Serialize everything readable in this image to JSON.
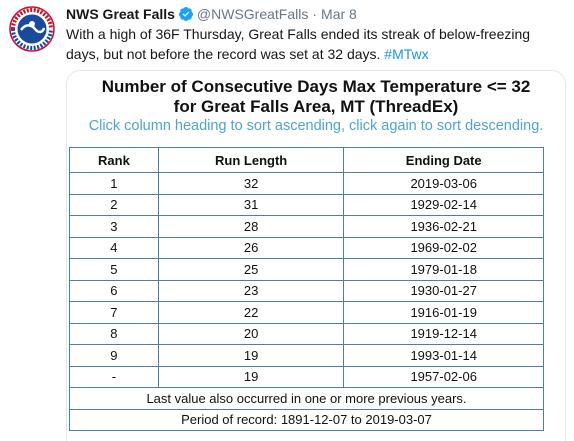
{
  "tweet": {
    "name": "NWS Great Falls",
    "handle": "@NWSGreatFalls",
    "separator": "·",
    "date": "Mar 8",
    "text_main": "With a high of 36F Thursday, Great Falls ended its streak of below-freezing days, but not before the record was set at 32 days. ",
    "hashtag": "#MTwx",
    "avatar_icon": "noaa-nws-logo-icon",
    "verified_icon": "verified-badge-icon",
    "colors": {
      "verified": "#1da1f2",
      "hashtag": "#1b95e0",
      "meta": "#657786"
    }
  },
  "card": {
    "title_line1": "Number of Consecutive Days Max Temperature <= 32",
    "title_line2": "for Great Falls Area, MT (ThreadEx)",
    "subtitle": "Click column heading to sort ascending, click again to sort descending.",
    "columns": [
      "Rank",
      "Run Length",
      "Ending Date"
    ],
    "rows": [
      {
        "rank": "1",
        "length": "32",
        "date": "2019-03-06"
      },
      {
        "rank": "2",
        "length": "31",
        "date": "1929-02-14"
      },
      {
        "rank": "3",
        "length": "28",
        "date": "1936-02-21"
      },
      {
        "rank": "4",
        "length": "26",
        "date": "1969-02-02"
      },
      {
        "rank": "5",
        "length": "25",
        "date": "1979-01-18"
      },
      {
        "rank": "6",
        "length": "23",
        "date": "1930-01-27"
      },
      {
        "rank": "7",
        "length": "22",
        "date": "1916-01-19"
      },
      {
        "rank": "8",
        "length": "20",
        "date": "1919-12-14"
      },
      {
        "rank": "9",
        "length": "19",
        "date": "1993-01-14"
      },
      {
        "rank": "-",
        "length": "19",
        "date": "1957-02-06"
      }
    ],
    "footnote": "Last value also occurred in one or more previous years.",
    "period": "Period of record: 1891-12-07 to 2019-03-07",
    "colors": {
      "subtitle": "#4ea4c9",
      "table_border": "#4c7fa0"
    }
  }
}
